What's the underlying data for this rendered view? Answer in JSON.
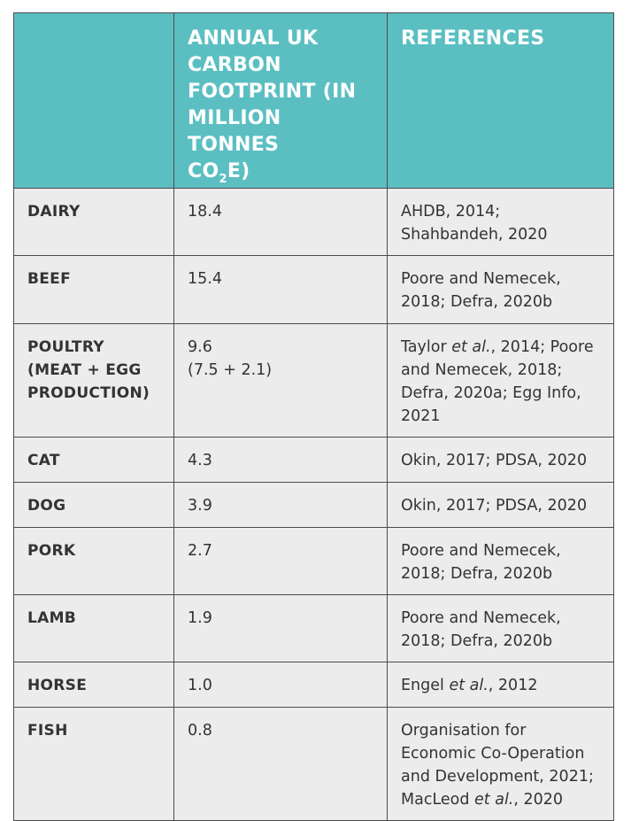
{
  "header": {
    "col1": "",
    "col2_lines": [
      "ANNUAL UK",
      "CARBON",
      "FOOTPRINT (IN",
      "MILLION TONNES"
    ],
    "col2_co": "CO",
    "col2_sub": "2",
    "col2_tail": "E)",
    "col3": "REFERENCES"
  },
  "rows": [
    {
      "category_lines": [
        "DAIRY"
      ],
      "value_lines": [
        "18.4"
      ],
      "reference_lines": [
        "AHDB, 2014;",
        "Shahbandeh, 2020"
      ]
    },
    {
      "category_lines": [
        "BEEF"
      ],
      "value_lines": [
        "15.4"
      ],
      "reference_lines": [
        "Poore and Nemecek,",
        "2018; Defra, 2020b"
      ]
    },
    {
      "category_lines": [
        "POULTRY",
        "(MEAT + EGG",
        "PRODUCTION)"
      ],
      "value_lines": [
        "9.6",
        "(7.5 + 2.1)"
      ],
      "reference_lines": [
        "Taylor et al., 2014; Poore",
        "and Nemecek, 2018;",
        "Defra, 2020a; Egg Info,",
        "2021"
      ]
    },
    {
      "category_lines": [
        "CAT"
      ],
      "value_lines": [
        "4.3"
      ],
      "reference_lines": [
        "Okin, 2017; PDSA, 2020"
      ]
    },
    {
      "category_lines": [
        "DOG"
      ],
      "value_lines": [
        "3.9"
      ],
      "reference_lines": [
        "Okin, 2017; PDSA, 2020"
      ]
    },
    {
      "category_lines": [
        "PORK"
      ],
      "value_lines": [
        "2.7"
      ],
      "reference_lines": [
        "Poore and Nemecek,",
        "2018; Defra, 2020b"
      ]
    },
    {
      "category_lines": [
        "LAMB"
      ],
      "value_lines": [
        "1.9"
      ],
      "reference_lines": [
        "Poore and Nemecek,",
        "2018; Defra, 2020b"
      ]
    },
    {
      "category_lines": [
        "HORSE"
      ],
      "value_lines": [
        "1.0"
      ],
      "reference_lines": [
        "Engel et al., 2012"
      ]
    },
    {
      "category_lines": [
        "FISH"
      ],
      "value_lines": [
        "0.8"
      ],
      "reference_lines": [
        "Organisation for",
        "Economic Co-Operation",
        "and Development, 2021;",
        "MacLeod et al., 2020"
      ]
    }
  ],
  "colors": {
    "header_bg": "#5bbfc2",
    "header_text": "#ffffff",
    "cell_bg": "#ececec",
    "cell_text": "#333333",
    "border": "#4b4b4b"
  }
}
